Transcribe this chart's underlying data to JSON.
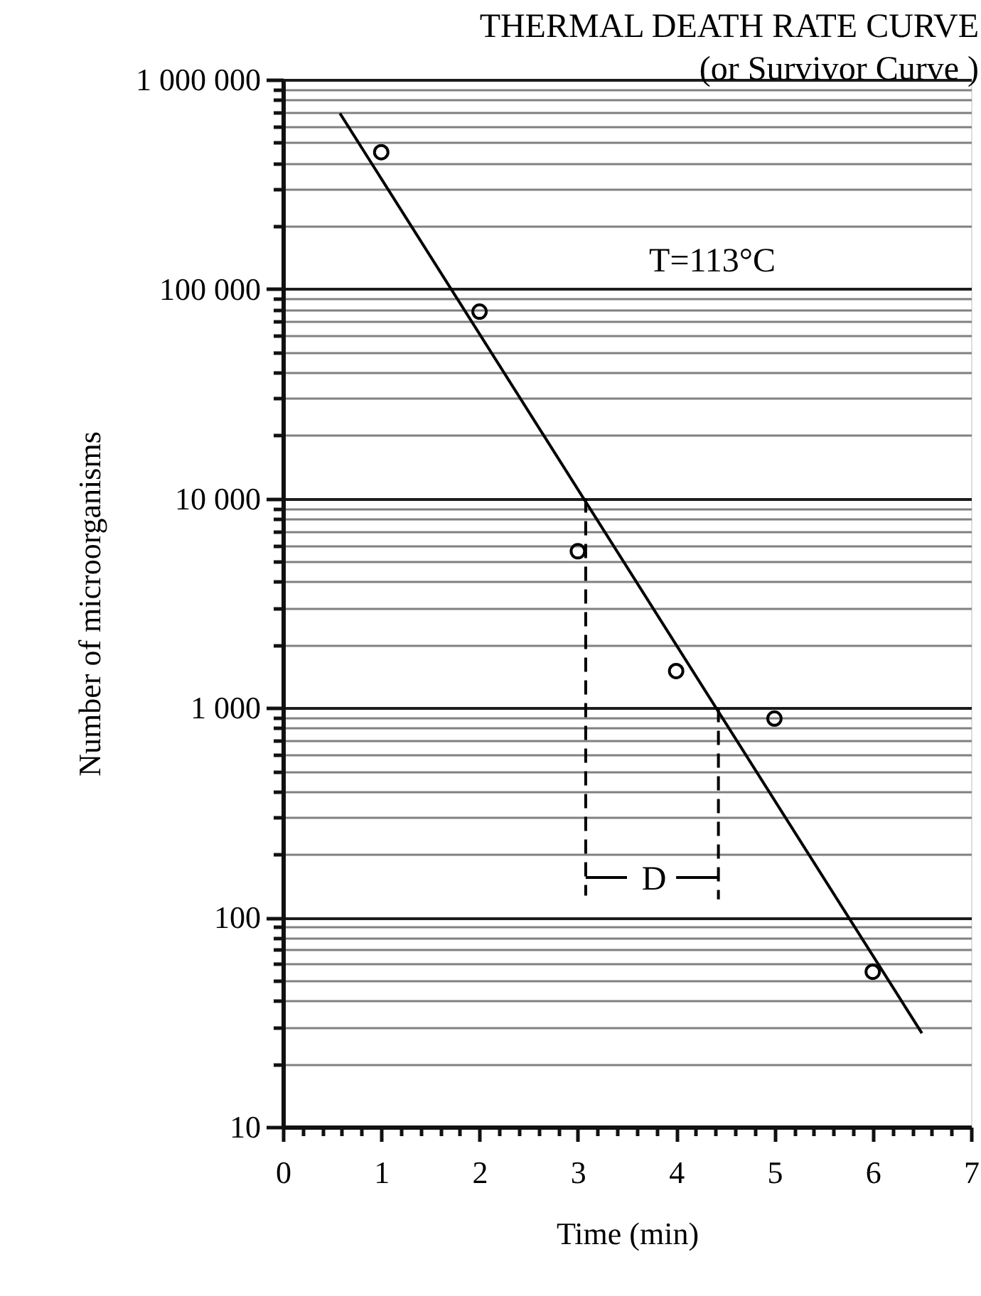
{
  "chart_data": {
    "type": "scatter",
    "title": "THERMAL DEATH RATE CURVE",
    "subtitle": "(or Survivor Curve )",
    "xlabel": "Time (min)",
    "ylabel": "Number of microorganisms",
    "annotations": [
      "T=113°C",
      "D"
    ],
    "log": "y",
    "grid": "y",
    "xlim": [
      0,
      7
    ],
    "ylim": [
      10,
      1000000
    ],
    "xticks": [
      0,
      {
        "value": 0.2,
        "label": null
      },
      {
        "value": 0.4,
        "label": null
      },
      {
        "value": 0.6,
        "label": null
      },
      {
        "value": 0.8,
        "label": null
      },
      1,
      {
        "value": 1.2,
        "label": null
      },
      {
        "value": 1.4,
        "label": null
      },
      {
        "value": 1.6,
        "label": null
      },
      {
        "value": 1.8,
        "label": null
      },
      2,
      {
        "value": 2.2,
        "label": null
      },
      {
        "value": 2.4,
        "label": null
      },
      {
        "value": 2.6,
        "label": null
      },
      {
        "value": 2.8,
        "label": null
      },
      3,
      {
        "value": 3.2,
        "label": null
      },
      {
        "value": 3.4,
        "label": null
      },
      {
        "value": 3.6,
        "label": null
      },
      {
        "value": 3.8,
        "label": null
      },
      4,
      {
        "value": 4.2,
        "label": null
      },
      {
        "value": 4.4,
        "label": null
      },
      {
        "value": 4.6,
        "label": null
      },
      {
        "value": 4.8,
        "label": null
      },
      5,
      {
        "value": 5.2,
        "label": null
      },
      {
        "value": 5.4,
        "label": null
      },
      {
        "value": 5.6,
        "label": null
      },
      {
        "value": 5.8,
        "label": null
      },
      6,
      {
        "value": 6.2,
        "label": null
      },
      {
        "value": 6.4,
        "label": null
      },
      {
        "value": 6.6,
        "label": null
      },
      {
        "value": 6.8,
        "label": null
      },
      7
    ],
    "yticks": [
      10,
      {
        "value": 20,
        "label": null
      },
      {
        "value": 30,
        "label": null
      },
      {
        "value": 40,
        "label": null
      },
      {
        "value": 50,
        "label": null
      },
      {
        "value": 60,
        "label": null
      },
      {
        "value": 70,
        "label": null
      },
      {
        "value": 80,
        "label": null
      },
      {
        "value": 90,
        "label": null
      },
      100,
      {
        "value": 200,
        "label": null
      },
      {
        "value": 300,
        "label": null
      },
      {
        "value": 400,
        "label": null
      },
      {
        "value": 500,
        "label": null
      },
      {
        "value": 600,
        "label": null
      },
      {
        "value": 700,
        "label": null
      },
      {
        "value": 800,
        "label": null
      },
      {
        "value": 900,
        "label": null
      },
      {
        "value": 1000,
        "label": "1 000"
      },
      {
        "value": 2000,
        "label": null
      },
      {
        "value": 3000,
        "label": null
      },
      {
        "value": 4000,
        "label": null
      },
      {
        "value": 5000,
        "label": null
      },
      {
        "value": 6000,
        "label": null
      },
      {
        "value": 7000,
        "label": null
      },
      {
        "value": 8000,
        "label": null
      },
      {
        "value": 9000,
        "label": null
      },
      {
        "value": 10000,
        "label": "10 000"
      },
      {
        "value": 20000,
        "label": null
      },
      {
        "value": 30000,
        "label": null
      },
      {
        "value": 40000,
        "label": null
      },
      {
        "value": 50000,
        "label": null
      },
      {
        "value": 60000,
        "label": null
      },
      {
        "value": 70000,
        "label": null
      },
      {
        "value": 80000,
        "label": null
      },
      {
        "value": 90000,
        "label": null
      },
      {
        "value": 100000,
        "label": "100 000"
      },
      {
        "value": 200000,
        "label": null
      },
      {
        "value": 300000,
        "label": null
      },
      {
        "value": 400000,
        "label": null
      },
      {
        "value": 500000,
        "label": null
      },
      {
        "value": 600000,
        "label": null
      },
      {
        "value": 700000,
        "label": null
      },
      {
        "value": 800000,
        "label": null
      },
      {
        "value": 900000,
        "label": null
      },
      {
        "value": 1000000,
        "label": "1 000 000"
      }
    ],
    "series": [
      {
        "marker": "circle",
        "color": "#000000",
        "x": [
          1,
          2,
          3,
          4,
          5,
          6
        ],
        "values": [
          450000,
          78000,
          5600,
          1500,
          890,
          55
        ]
      },
      {
        "type": "line",
        "line_style": "solid",
        "color": "#000000",
        "x": [
          0.58,
          6.5
        ],
        "values": [
          690000,
          28
        ]
      },
      {
        "type": "line",
        "line_style": "dashed",
        "color": "#000000",
        "x": [
          3.08,
          3.08
        ],
        "values": [
          10000,
          127
        ]
      },
      {
        "type": "line",
        "line_style": "dashed",
        "color": "#000000",
        "x": [
          4.43,
          4.43
        ],
        "values": [
          1000,
          122
        ]
      },
      {
        "type": "line",
        "line_style": "solid",
        "color": "#000000",
        "x": [
          3.08,
          3.5
        ],
        "values": [
          155,
          155
        ]
      },
      {
        "type": "line",
        "line_style": "solid",
        "color": "#000000",
        "x": [
          4.0,
          4.43
        ],
        "values": [
          155,
          155
        ]
      }
    ]
  }
}
